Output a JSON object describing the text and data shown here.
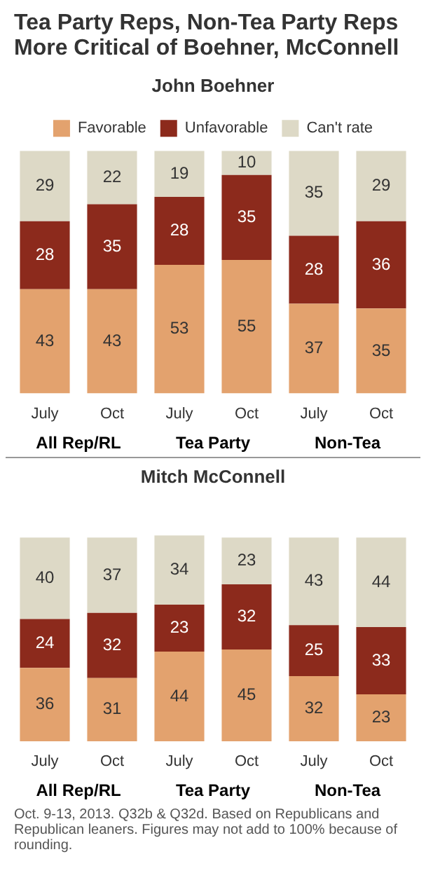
{
  "chart_data": [
    {
      "type": "bar",
      "title": "Tea Party Reps, Non-Tea Party Reps More Critical of Boehner, McConnell",
      "subtitle": "John Boehner",
      "categories": [
        "July",
        "Oct",
        "July",
        "Oct",
        "July",
        "Oct"
      ],
      "stacked": true,
      "data_labels": true,
      "legend": "top",
      "grid": false,
      "annotations": [
        "All Rep/RL",
        "Tea Party",
        "Non-Tea"
      ],
      "series": [
        {
          "name": "Favorable",
          "color": "#e3a26e",
          "values": [
            43,
            43,
            53,
            55,
            37,
            35
          ]
        },
        {
          "name": "Unfavorable",
          "color": "#8c2a1c",
          "values": [
            28,
            35,
            28,
            35,
            28,
            36
          ]
        },
        {
          "name": "Can't rate",
          "color": "#ddd9c6",
          "values": [
            29,
            22,
            19,
            10,
            35,
            29
          ]
        }
      ]
    },
    {
      "type": "bar",
      "title": "Mitch McConnell",
      "categories": [
        "July",
        "Oct",
        "July",
        "Oct",
        "July",
        "Oct"
      ],
      "stacked": true,
      "data_labels": true,
      "grid": false,
      "annotations": [
        "All Rep/RL",
        "Tea Party",
        "Non-Tea",
        "Oct. 9-13, 2013. Q32b & Q32d. Based on Republicans and Republican leaners. Figures may not add to 100% because of rounding."
      ],
      "series": [
        {
          "color": "#e3a26e",
          "values": [
            36,
            31,
            44,
            45,
            32,
            23
          ]
        },
        {
          "color": "#8c2a1c",
          "values": [
            24,
            32,
            23,
            32,
            25,
            33
          ]
        },
        {
          "color": "#ddd9c6",
          "values": [
            40,
            37,
            34,
            23,
            43,
            44
          ]
        }
      ]
    }
  ]
}
